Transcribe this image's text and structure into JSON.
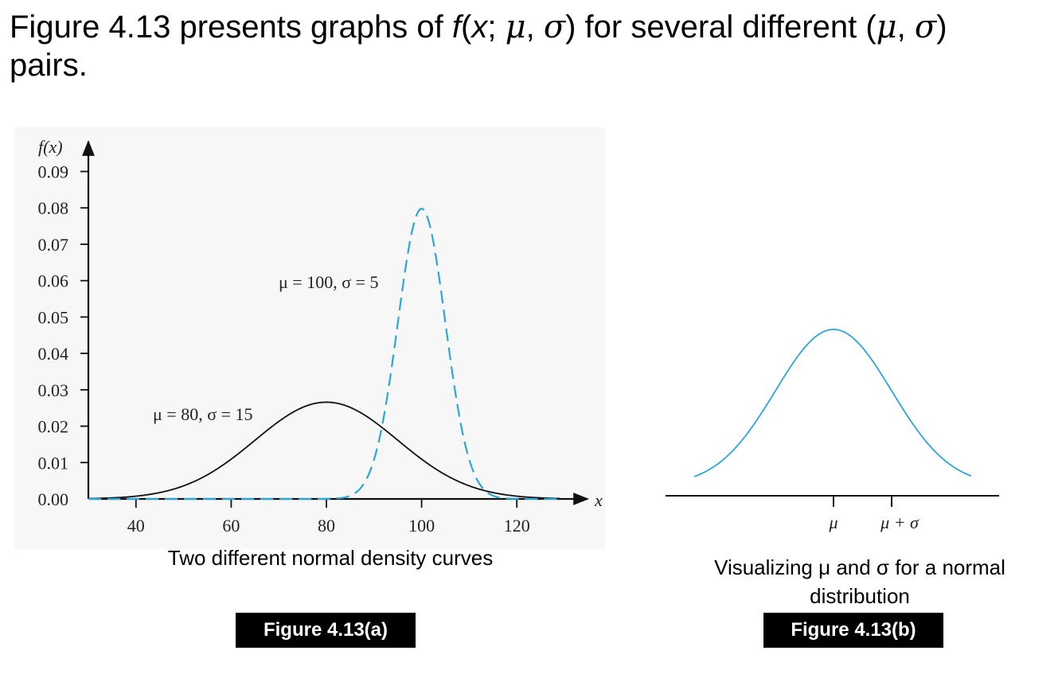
{
  "heading": {
    "part1": "Figure 4.13 presents graphs of ",
    "f": "f",
    "paren_open": "(",
    "x": "x",
    "semi": "; ",
    "mu": "μ",
    "comma": ", ",
    "sigma": "σ",
    "part2": ") for several different (",
    "mu2": "μ",
    "comma2": ", ",
    "sigma2": "σ",
    "part3": ")",
    "line2": "pairs."
  },
  "figure_a": {
    "caption": "Two different normal density curves",
    "label": "Figure 4.13(a)",
    "ylabel": "f(x)",
    "xlabel": "x",
    "annotation_1": "μ = 100, σ = 5",
    "annotation_2": "μ = 80, σ = 15"
  },
  "figure_b": {
    "caption_line1": "Visualizing μ and σ for a normal",
    "caption_line2": "distribution",
    "label": "Figure 4.13(b)",
    "tick_mu": "μ",
    "tick_mu_sigma": "μ + σ"
  },
  "colors": {
    "blue": "#2aa8d4",
    "black": "#111111",
    "panel_bg": "#f7f7f7"
  },
  "chart_data": [
    {
      "type": "line",
      "title": "",
      "xlabel": "x",
      "ylabel": "f(x)",
      "xlim": [
        30,
        133
      ],
      "ylim": [
        0,
        0.09
      ],
      "xticks": [
        40,
        60,
        80,
        100,
        120
      ],
      "yticks": [
        0.0,
        0.01,
        0.02,
        0.03,
        0.04,
        0.05,
        0.06,
        0.07,
        0.08,
        0.09
      ],
      "ytick_labels": [
        "0.00",
        "0.01",
        "0.02",
        "0.03",
        "0.04",
        "0.05",
        "0.06",
        "0.07",
        "0.08",
        "0.09"
      ],
      "series": [
        {
          "name": "μ = 80, σ = 15",
          "distribution": "normal",
          "mu": 80,
          "sigma": 15,
          "style": "solid",
          "color": "#111111",
          "peak_value": 0.0266
        },
        {
          "name": "μ = 100, σ = 5",
          "distribution": "normal",
          "mu": 100,
          "sigma": 5,
          "style": "dashed",
          "color": "#2aa8d4",
          "peak_value": 0.0798
        }
      ],
      "grid": false
    },
    {
      "type": "line",
      "title": "",
      "series": [
        {
          "distribution": "normal",
          "style": "solid",
          "color": "#2aa8d4"
        }
      ],
      "xtick_labels": [
        "μ",
        "μ + σ"
      ],
      "grid": false
    }
  ]
}
